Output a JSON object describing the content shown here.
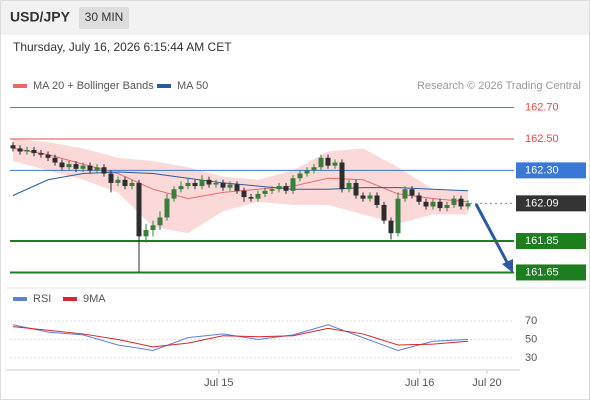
{
  "chart_data": {
    "type": "candlestick",
    "symbol": "USD/JPY",
    "timeframe": "30 MIN",
    "subtitle": "Thursday, July 16, 2026 6:15:44 AM CET",
    "credit": "Research © 2026 Trading Central",
    "xlim": [
      -1,
      73
    ],
    "xticks": [
      {
        "value": 29.4,
        "label": "Jul 15"
      },
      {
        "value": 58.1,
        "label": "Jul 16"
      },
      {
        "value": 67.7,
        "label": "Jul 20"
      }
    ],
    "ylim": [
      161.57,
      162.78
    ],
    "up_color": "#3b7d3b",
    "down_color": "#2d2d2d",
    "candles": [
      [
        162.46,
        162.48,
        162.42,
        162.44
      ],
      [
        162.44,
        162.46,
        162.4,
        162.42
      ],
      [
        162.42,
        162.45,
        162.4,
        162.43
      ],
      [
        162.43,
        162.45,
        162.39,
        162.41
      ],
      [
        162.41,
        162.43,
        162.38,
        162.4
      ],
      [
        162.4,
        162.42,
        162.36,
        162.38
      ],
      [
        162.38,
        162.4,
        162.33,
        162.35
      ],
      [
        162.35,
        162.37,
        162.3,
        162.32
      ],
      [
        162.32,
        162.36,
        162.3,
        162.34
      ],
      [
        162.34,
        162.36,
        162.29,
        162.31
      ],
      [
        162.31,
        162.35,
        162.29,
        162.33
      ],
      [
        162.33,
        162.35,
        162.28,
        162.3
      ],
      [
        162.3,
        162.34,
        162.28,
        162.32
      ],
      [
        162.32,
        162.34,
        162.26,
        162.28
      ],
      [
        162.28,
        162.3,
        162.16,
        162.22
      ],
      [
        162.22,
        162.26,
        162.2,
        162.24
      ],
      [
        162.24,
        162.26,
        162.18,
        162.2
      ],
      [
        162.2,
        162.24,
        162.18,
        162.22
      ],
      [
        162.22,
        162.24,
        161.65,
        161.88
      ],
      [
        161.88,
        161.96,
        161.84,
        161.92
      ],
      [
        161.92,
        161.98,
        161.88,
        161.95
      ],
      [
        161.95,
        162.04,
        161.92,
        162
      ],
      [
        162,
        162.15,
        161.98,
        162.12
      ],
      [
        162.12,
        162.2,
        162.1,
        162.18
      ],
      [
        162.18,
        162.23,
        162.16,
        162.2
      ],
      [
        162.2,
        162.25,
        162.18,
        162.22
      ],
      [
        162.22,
        162.24,
        162.18,
        162.2
      ],
      [
        162.2,
        162.27,
        162.18,
        162.24
      ],
      [
        162.24,
        162.26,
        162.19,
        162.21
      ],
      [
        162.21,
        162.24,
        162.19,
        162.22
      ],
      [
        162.22,
        162.24,
        162.17,
        162.19
      ],
      [
        162.19,
        162.23,
        162.17,
        162.21
      ],
      [
        162.21,
        162.23,
        162.15,
        162.17
      ],
      [
        162.17,
        162.19,
        162.1,
        162.13
      ],
      [
        162.13,
        162.15,
        162.1,
        162.12
      ],
      [
        162.12,
        162.17,
        162.1,
        162.15
      ],
      [
        162.15,
        162.19,
        162.13,
        162.17
      ],
      [
        162.17,
        162.2,
        162.15,
        162.18
      ],
      [
        162.18,
        162.22,
        162.16,
        162.2
      ],
      [
        162.2,
        162.22,
        162.15,
        162.17
      ],
      [
        162.17,
        162.27,
        162.15,
        162.25
      ],
      [
        162.25,
        162.3,
        162.23,
        162.28
      ],
      [
        162.28,
        162.32,
        162.26,
        162.3
      ],
      [
        162.3,
        162.34,
        162.28,
        162.32
      ],
      [
        162.32,
        162.4,
        162.3,
        162.38
      ],
      [
        162.38,
        162.4,
        162.31,
        162.33
      ],
      [
        162.33,
        162.37,
        162.31,
        162.35
      ],
      [
        162.35,
        162.37,
        162.16,
        162.18
      ],
      [
        162.18,
        162.24,
        162.16,
        162.22
      ],
      [
        162.22,
        162.24,
        162.12,
        162.14
      ],
      [
        162.14,
        162.16,
        162.1,
        162.12
      ],
      [
        162.12,
        162.16,
        162.1,
        162.14
      ],
      [
        162.14,
        162.16,
        162.06,
        162.08
      ],
      [
        162.08,
        162.1,
        161.96,
        161.98
      ],
      [
        161.98,
        162,
        161.86,
        161.9
      ],
      [
        161.9,
        162.16,
        161.88,
        162.12
      ],
      [
        162.12,
        162.2,
        162.1,
        162.18
      ],
      [
        162.18,
        162.2,
        162.12,
        162.14
      ],
      [
        162.14,
        162.16,
        162.08,
        162.1
      ],
      [
        162.1,
        162.12,
        162.05,
        162.07
      ],
      [
        162.07,
        162.12,
        162.05,
        162.1
      ],
      [
        162.1,
        162.12,
        162.04,
        162.06
      ],
      [
        162.06,
        162.1,
        162.04,
        162.08
      ],
      [
        162.08,
        162.14,
        162.06,
        162.12
      ],
      [
        162.12,
        162.14,
        162.05,
        162.07
      ],
      [
        162.07,
        162.11,
        162.05,
        162.09
      ]
    ],
    "series": [
      {
        "name": "MA 20 + Bollinger Bands",
        "color": "#e86a6a",
        "band_color": "#fbd9d9",
        "x": [
          0,
          5,
          10,
          15,
          20,
          25,
          30,
          35,
          40,
          45,
          50,
          55,
          60,
          65
        ],
        "values": [
          162.44,
          162.4,
          162.34,
          162.28,
          162.18,
          162.12,
          162.16,
          162.18,
          162.2,
          162.25,
          162.24,
          162.15,
          162.12,
          162.1
        ],
        "upper": [
          162.5,
          162.48,
          162.44,
          162.38,
          162.36,
          162.32,
          162.26,
          162.24,
          162.3,
          162.42,
          162.44,
          162.32,
          162.18,
          162.17
        ],
        "lower": [
          162.36,
          162.3,
          162.24,
          162.16,
          161.94,
          161.9,
          162.04,
          162.1,
          162.08,
          162.08,
          162.02,
          161.96,
          162.02,
          162.02
        ]
      },
      {
        "name": "MA 50",
        "color": "#2b5a9e",
        "x": [
          0,
          5,
          10,
          15,
          20,
          25,
          30,
          35,
          40,
          45,
          50,
          55,
          60,
          65
        ],
        "values": [
          162.14,
          162.24,
          162.28,
          162.29,
          162.28,
          162.25,
          162.22,
          162.2,
          162.18,
          162.18,
          162.19,
          162.19,
          162.18,
          162.17
        ]
      }
    ],
    "levels": [
      {
        "value": 162.7,
        "label": "162.70",
        "color": "#e84a4a",
        "boxed": false,
        "width": 1
      },
      {
        "value": 162.5,
        "label": "162.50",
        "color": "#e84a4a",
        "boxed": false,
        "width": 1
      },
      {
        "value": 162.3,
        "label": "162.30",
        "color": "#3a78d8",
        "boxed": true,
        "width": 1
      },
      {
        "value": 162.09,
        "label": "162.09",
        "color": "#333333",
        "boxed": true,
        "width": 1,
        "dotted": true
      },
      {
        "value": 161.85,
        "label": "161.85",
        "color": "#1e7d1e",
        "boxed": true,
        "width": 2
      },
      {
        "value": 161.65,
        "label": "161.65",
        "color": "#1e7d1e",
        "boxed": true,
        "width": 2
      }
    ],
    "rsi": {
      "ylim": [
        19,
        82
      ],
      "yticks": [
        70,
        50,
        30
      ],
      "series": [
        {
          "name": "RSI",
          "color": "#5b80d8",
          "x": [
            0,
            5,
            10,
            15,
            20,
            25,
            30,
            35,
            40,
            45,
            50,
            55,
            60,
            65
          ],
          "values": [
            66,
            58,
            55,
            44,
            38,
            52,
            56,
            50,
            55,
            66,
            52,
            38,
            48,
            50
          ]
        },
        {
          "name": "9MA",
          "color": "#d62828",
          "x": [
            0,
            5,
            10,
            15,
            20,
            25,
            30,
            35,
            40,
            45,
            50,
            55,
            60,
            65
          ],
          "values": [
            64,
            60,
            56,
            50,
            42,
            46,
            54,
            53,
            54,
            62,
            56,
            44,
            45,
            48
          ]
        }
      ]
    }
  }
}
